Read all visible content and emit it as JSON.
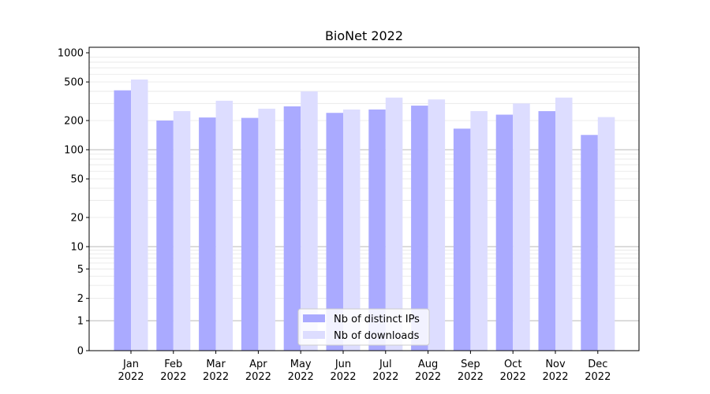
{
  "chart_data": {
    "type": "bar",
    "title": "BioNet 2022",
    "xlabel": "",
    "ylabel": "",
    "yscale": "symlog",
    "ylim": [
      0,
      1000
    ],
    "yticks": [
      {
        "value": 0,
        "label": "0"
      },
      {
        "value": 1,
        "label": "1"
      },
      {
        "value": 2,
        "label": "2"
      },
      {
        "value": 5,
        "label": "5"
      },
      {
        "value": 10,
        "label": "10"
      },
      {
        "value": 20,
        "label": "20"
      },
      {
        "value": 50,
        "label": "50"
      },
      {
        "value": 100,
        "label": "100"
      },
      {
        "value": 200,
        "label": "200"
      },
      {
        "value": 500,
        "label": "500"
      },
      {
        "value": 1000,
        "label": "1000"
      }
    ],
    "grid": true,
    "legend_position": "bottom-center",
    "categories": [
      {
        "month": "Jan",
        "year": "2022"
      },
      {
        "month": "Feb",
        "year": "2022"
      },
      {
        "month": "Mar",
        "year": "2022"
      },
      {
        "month": "Apr",
        "year": "2022"
      },
      {
        "month": "May",
        "year": "2022"
      },
      {
        "month": "Jun",
        "year": "2022"
      },
      {
        "month": "Jul",
        "year": "2022"
      },
      {
        "month": "Aug",
        "year": "2022"
      },
      {
        "month": "Sep",
        "year": "2022"
      },
      {
        "month": "Oct",
        "year": "2022"
      },
      {
        "month": "Nov",
        "year": "2022"
      },
      {
        "month": "Dec",
        "year": "2022"
      }
    ],
    "series": [
      {
        "name": "Nb of distinct IPs",
        "color": "#aaaaff",
        "values": [
          410,
          200,
          215,
          213,
          280,
          240,
          260,
          285,
          165,
          230,
          250,
          142
        ]
      },
      {
        "name": "Nb of downloads",
        "color": "#ddddff",
        "values": [
          530,
          250,
          320,
          265,
          400,
          260,
          345,
          330,
          250,
          300,
          345,
          217
        ]
      }
    ]
  }
}
